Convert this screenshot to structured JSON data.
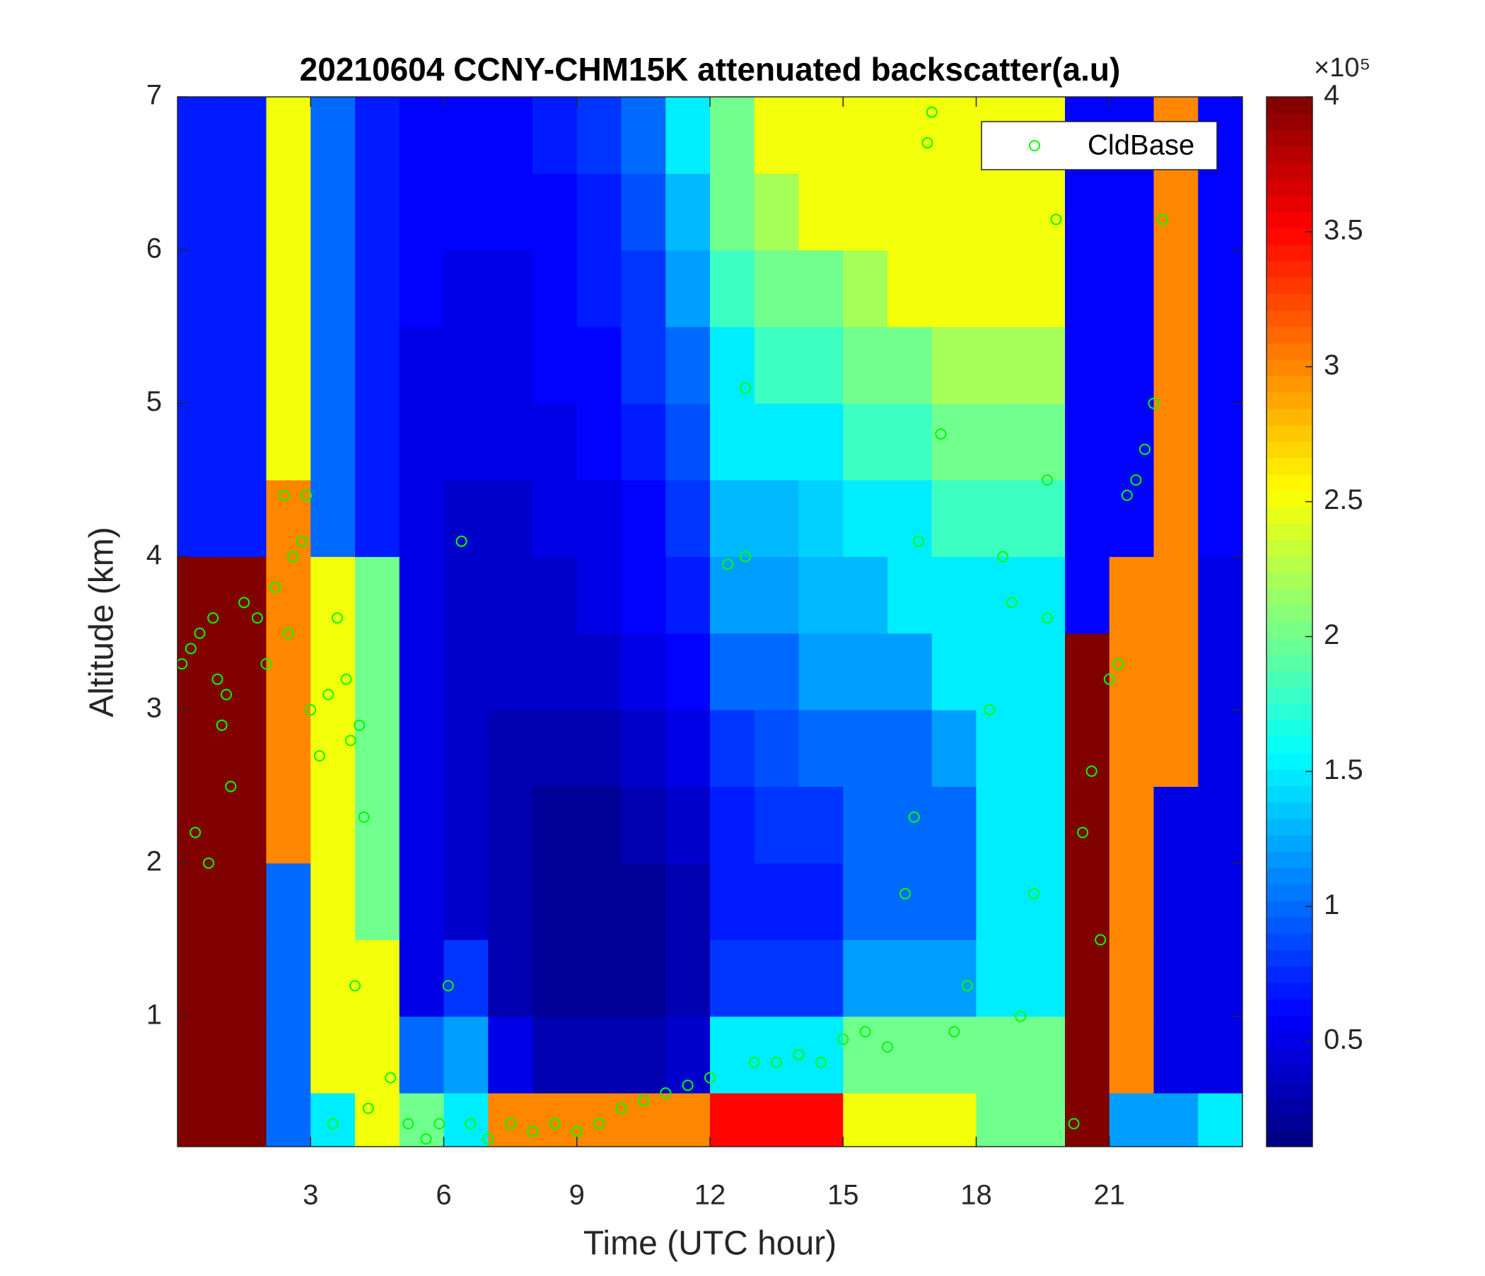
{
  "chart_data": {
    "type": "heatmap",
    "title": "20210604 CCNY-CHM15K attenuated backscatter(a.u)",
    "x_label": "Time (UTC hour)",
    "y_label": "Altitude (km)",
    "xlim": [
      0,
      24
    ],
    "ylim": [
      0.15,
      7
    ],
    "xticks": [
      3,
      6,
      9,
      12,
      15,
      18,
      21
    ],
    "yticks": [
      1,
      2,
      3,
      4,
      5,
      6,
      7
    ],
    "x_edges": [
      0,
      1,
      2,
      3,
      4,
      5,
      6,
      7,
      8,
      9,
      10,
      11,
      12,
      13,
      14,
      15,
      16,
      17,
      18,
      19,
      20,
      21,
      22,
      23,
      24
    ],
    "y_edges": [
      0.15,
      0.5,
      1,
      1.5,
      2,
      2.5,
      3,
      3.5,
      4,
      4.5,
      5,
      5.5,
      6,
      6.5,
      7
    ],
    "z": [
      [
        4,
        4,
        1.0,
        1.5,
        2.5,
        2.0,
        1.5,
        3.0,
        3.0,
        3.0,
        3.0,
        3.0,
        3.5,
        3.5,
        3.5,
        2.5,
        2.5,
        2.5,
        2.0,
        2.0,
        4,
        1.2,
        1.2,
        1.5
      ],
      [
        4,
        4,
        1.0,
        2.5,
        2.5,
        1.0,
        1.2,
        0.5,
        0.3,
        0.3,
        0.3,
        0.4,
        1.5,
        1.5,
        1.5,
        2.0,
        2.0,
        2.0,
        2.0,
        2.0,
        4,
        3.0,
        0.5,
        0.5
      ],
      [
        4,
        4,
        1.0,
        2.5,
        2.5,
        0.5,
        0.8,
        0.3,
        0.2,
        0.2,
        0.2,
        0.3,
        0.8,
        0.8,
        0.8,
        1.2,
        1.2,
        1.2,
        1.5,
        1.5,
        4,
        3.0,
        0.5,
        0.5
      ],
      [
        4,
        4,
        1.0,
        2.5,
        2.0,
        0.5,
        0.4,
        0.3,
        0.2,
        0.2,
        0.2,
        0.3,
        0.7,
        0.7,
        0.7,
        1.0,
        1.0,
        1.0,
        1.5,
        1.5,
        4,
        3.0,
        0.5,
        0.5
      ],
      [
        4,
        4,
        3.0,
        2.5,
        2.0,
        0.5,
        0.4,
        0.3,
        0.2,
        0.2,
        0.3,
        0.4,
        0.7,
        0.8,
        0.8,
        1.0,
        1.0,
        1.0,
        1.5,
        1.5,
        4,
        3.0,
        0.5,
        0.5
      ],
      [
        4,
        4,
        3.0,
        2.5,
        2.0,
        0.5,
        0.4,
        0.3,
        0.3,
        0.3,
        0.4,
        0.5,
        0.8,
        0.9,
        1.0,
        1.0,
        1.0,
        1.2,
        1.5,
        1.5,
        4,
        3.0,
        3.0,
        0.5
      ],
      [
        4,
        4,
        3.0,
        2.5,
        2.0,
        0.5,
        0.4,
        0.4,
        0.4,
        0.4,
        0.5,
        0.6,
        1.0,
        1.0,
        1.2,
        1.2,
        1.2,
        1.5,
        1.5,
        1.5,
        4,
        3.0,
        3.0,
        0.5
      ],
      [
        4,
        4,
        3.0,
        2.5,
        2.0,
        0.5,
        0.4,
        0.4,
        0.4,
        0.5,
        0.6,
        0.7,
        1.2,
        1.2,
        1.3,
        1.3,
        1.5,
        1.5,
        1.5,
        1.5,
        0.6,
        3.0,
        3.0,
        0.5
      ],
      [
        0.7,
        0.7,
        3.0,
        1.0,
        0.7,
        0.5,
        0.4,
        0.4,
        0.5,
        0.5,
        0.6,
        0.8,
        1.3,
        1.3,
        1.4,
        1.5,
        1.5,
        1.8,
        1.8,
        1.8,
        0.6,
        0.6,
        3.0,
        0.6
      ],
      [
        0.7,
        0.7,
        2.5,
        1.0,
        0.7,
        0.5,
        0.5,
        0.5,
        0.5,
        0.6,
        0.7,
        0.9,
        1.5,
        1.5,
        1.5,
        1.8,
        1.8,
        2.0,
        2.0,
        2.0,
        0.6,
        0.6,
        3.0,
        0.6
      ],
      [
        0.7,
        0.7,
        2.5,
        1.0,
        0.7,
        0.5,
        0.5,
        0.5,
        0.6,
        0.6,
        0.8,
        1.0,
        1.5,
        1.8,
        1.8,
        2.0,
        2.0,
        2.2,
        2.2,
        2.2,
        0.6,
        0.6,
        3.0,
        0.6
      ],
      [
        0.7,
        0.7,
        2.5,
        1.0,
        0.7,
        0.6,
        0.5,
        0.5,
        0.6,
        0.7,
        0.8,
        1.2,
        1.8,
        2.0,
        2.0,
        2.2,
        2.5,
        2.5,
        2.5,
        2.5,
        0.6,
        0.6,
        3.0,
        0.6
      ],
      [
        0.7,
        0.7,
        2.5,
        1.0,
        0.7,
        0.6,
        0.6,
        0.6,
        0.6,
        0.7,
        0.9,
        1.3,
        2.0,
        2.2,
        2.5,
        2.5,
        2.5,
        2.5,
        2.5,
        2.5,
        0.6,
        0.6,
        3.0,
        0.6
      ],
      [
        0.7,
        0.7,
        2.5,
        1.0,
        0.7,
        0.6,
        0.6,
        0.6,
        0.7,
        0.8,
        1.0,
        1.5,
        2.0,
        2.5,
        2.5,
        2.5,
        2.5,
        2.5,
        2.5,
        2.5,
        0.6,
        0.6,
        3.0,
        0.6
      ]
    ],
    "clim": [
      0.11,
      4
    ],
    "colorbar_ticks": [
      0.5,
      1,
      1.5,
      2,
      2.5,
      3,
      3.5,
      4
    ],
    "colorbar_multiplier": "×10⁵",
    "colormap": "jet",
    "legend_position": "upper right",
    "series": [
      {
        "name": "CldBase",
        "color": "#00ff00",
        "x": [
          0.1,
          0.3,
          0.5,
          0.8,
          0.9,
          1.0,
          1.1,
          1.2,
          0.4,
          0.7,
          1.5,
          1.8,
          2.0,
          2.2,
          2.4,
          2.6,
          2.8,
          2.9,
          2.5,
          3.0,
          3.2,
          3.4,
          3.6,
          3.8,
          3.9,
          4.1,
          4.2,
          4.0,
          3.5,
          4.3,
          4.8,
          5.2,
          5.6,
          5.9,
          6.1,
          6.4,
          6.6,
          7.0,
          7.5,
          8.0,
          8.5,
          9.0,
          9.5,
          10.0,
          10.5,
          11.0,
          11.5,
          12.0,
          12.4,
          12.8,
          12.8,
          13.0,
          13.5,
          14.0,
          14.5,
          15.0,
          15.5,
          16.0,
          16.4,
          16.6,
          16.9,
          17.0,
          17.2,
          16.7,
          17.5,
          17.8,
          18.3,
          18.6,
          18.8,
          19.0,
          19.3,
          19.6,
          19.8,
          19.6,
          20.2,
          20.4,
          20.6,
          20.8,
          21.0,
          21.2,
          21.4,
          21.6,
          21.8,
          22.0,
          22.2
        ],
        "y": [
          3.3,
          3.4,
          3.5,
          3.6,
          3.2,
          2.9,
          3.1,
          2.5,
          2.2,
          2.0,
          3.7,
          3.6,
          3.3,
          3.8,
          4.4,
          4.0,
          4.1,
          4.4,
          3.5,
          3.0,
          2.7,
          3.1,
          3.6,
          3.2,
          2.8,
          2.9,
          2.3,
          1.2,
          0.3,
          0.4,
          0.6,
          0.3,
          0.2,
          0.3,
          1.2,
          4.1,
          0.3,
          0.2,
          0.3,
          0.25,
          0.3,
          0.25,
          0.3,
          0.4,
          0.45,
          0.5,
          0.55,
          0.6,
          3.95,
          4.0,
          5.1,
          0.7,
          0.7,
          0.75,
          0.7,
          0.85,
          0.9,
          0.8,
          1.8,
          2.3,
          6.7,
          6.9,
          4.8,
          4.1,
          0.9,
          1.2,
          3.0,
          4.0,
          3.7,
          1.0,
          1.8,
          3.6,
          6.2,
          4.5,
          0.3,
          2.2,
          2.6,
          1.5,
          3.2,
          3.3,
          4.4,
          4.5,
          4.7,
          5.0,
          6.2
        ]
      }
    ]
  }
}
